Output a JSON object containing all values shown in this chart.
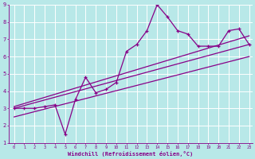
{
  "xlabel": "Windchill (Refroidissement éolien,°C)",
  "bg_color": "#b8e8e8",
  "line_color": "#880088",
  "grid_color": "#d0f0f0",
  "xlim": [
    0,
    23
  ],
  "ylim": [
    1,
    9
  ],
  "xticks": [
    0,
    1,
    2,
    3,
    4,
    5,
    6,
    7,
    8,
    9,
    10,
    11,
    12,
    13,
    14,
    15,
    16,
    17,
    18,
    19,
    20,
    21,
    22,
    23
  ],
  "yticks": [
    1,
    2,
    3,
    4,
    5,
    6,
    7,
    8,
    9
  ],
  "series1_x": [
    0,
    1,
    2,
    3,
    4,
    5,
    6,
    7,
    8,
    9,
    10,
    11,
    12,
    13,
    14,
    15,
    16,
    17,
    18,
    19,
    20,
    21,
    22,
    23
  ],
  "series1_y": [
    3.0,
    3.0,
    3.0,
    3.1,
    3.2,
    1.5,
    3.5,
    4.8,
    3.9,
    4.1,
    4.5,
    6.3,
    6.7,
    7.5,
    9.0,
    8.3,
    7.5,
    7.3,
    6.6,
    6.6,
    6.6,
    7.5,
    7.6,
    6.7
  ],
  "trend1_x": [
    0,
    23
  ],
  "trend1_y": [
    3.0,
    6.7
  ],
  "trend2_x": [
    0,
    23
  ],
  "trend2_y": [
    3.1,
    7.2
  ],
  "trend3_x": [
    0,
    23
  ],
  "trend3_y": [
    2.5,
    6.0
  ]
}
